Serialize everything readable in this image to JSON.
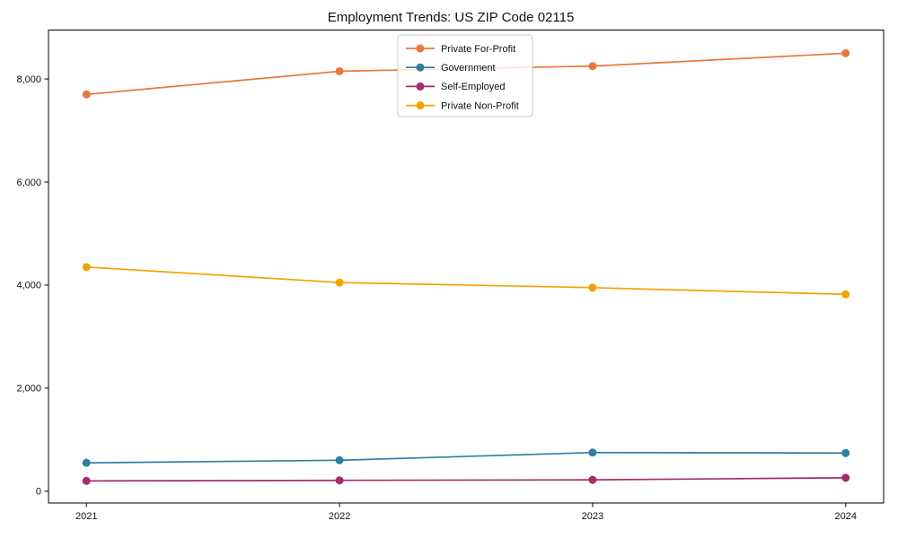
{
  "chart_data": {
    "type": "line",
    "title": "Employment Trends: US ZIP Code 02115",
    "xlabel": "",
    "ylabel": "",
    "x": [
      2021,
      2022,
      2023,
      2024
    ],
    "xtick_labels": [
      "2021",
      "2022",
      "2023",
      "2024"
    ],
    "yticks": [
      {
        "value": 0,
        "label": "0"
      },
      {
        "value": 2000,
        "label": "2,000"
      },
      {
        "value": 4000,
        "label": "4,000"
      },
      {
        "value": 6000,
        "label": "6,000"
      },
      {
        "value": 8000,
        "label": "8,000"
      }
    ],
    "xlim": [
      2020.85,
      2024.15
    ],
    "ylim": [
      -230,
      8950
    ],
    "grid": false,
    "legend_position": "upper center",
    "series": [
      {
        "name": "Private For-Profit",
        "color": "#e8783c",
        "values": [
          7700,
          8150,
          8250,
          8500
        ]
      },
      {
        "name": "Government",
        "color": "#2f7fa1",
        "values": [
          550,
          600,
          750,
          740
        ]
      },
      {
        "name": "Self-Employed",
        "color": "#a62c6e",
        "values": [
          200,
          210,
          220,
          260
        ]
      },
      {
        "name": "Private Non-Profit",
        "color": "#f2a104",
        "values": [
          4350,
          4050,
          3950,
          3820
        ]
      }
    ],
    "style": {
      "spine_color": "#000000",
      "tick_color": "#000000",
      "legend_border_color": "#cccccc",
      "legend_background": "rgba(255,255,255,0.8)"
    }
  }
}
